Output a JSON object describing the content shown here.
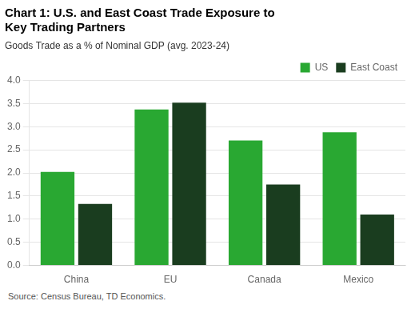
{
  "chart_data": {
    "type": "bar",
    "title": "Chart 1: U.S. and East Coast Trade Exposure to\nKey Trading Partners",
    "subtitle": "Goods Trade as a % of Nominal GDP (avg. 2023-24)",
    "annotations": [
      "Source: Census Bureau, TD Economics."
    ],
    "categories": [
      "China",
      "EU",
      "Canada",
      "Mexico"
    ],
    "series": [
      {
        "name": "US",
        "color": "#29A832",
        "values": [
          2.02,
          3.37,
          2.7,
          2.88
        ]
      },
      {
        "name": "East Coast",
        "color": "#1A3D1F",
        "values": [
          1.33,
          3.52,
          1.75,
          1.1
        ]
      }
    ],
    "ylim": [
      0,
      4.0
    ],
    "yticks": [
      {
        "value": 0,
        "label": "0.0"
      },
      0.5,
      {
        "value": 1,
        "label": "1.0"
      },
      1.5,
      {
        "value": 2,
        "label": "2.0"
      },
      2.5,
      {
        "value": 3,
        "label": "3.0"
      },
      3.5,
      {
        "value": 4,
        "label": "4.0"
      }
    ],
    "grid": true,
    "legend": "upper right"
  }
}
